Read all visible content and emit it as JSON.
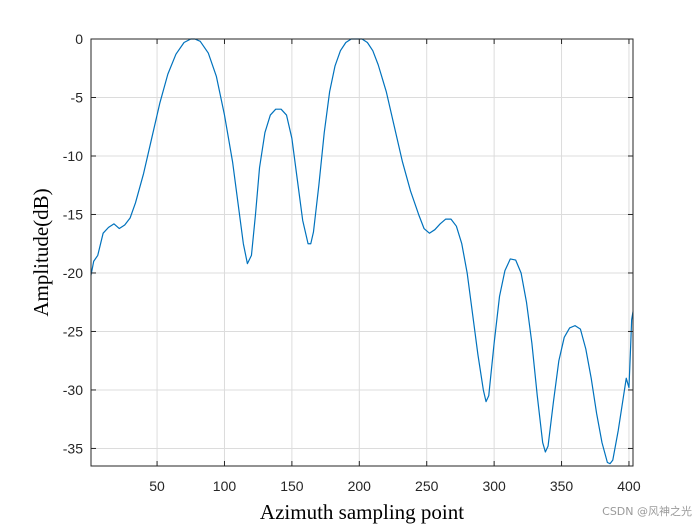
{
  "chart_data": {
    "type": "line",
    "xlabel": "Azimuth sampling point",
    "ylabel": "Amplitude(dB)",
    "xlim": [
      1,
      403
    ],
    "ylim": [
      -36.5,
      0
    ],
    "xticks": [
      50,
      100,
      150,
      200,
      250,
      300,
      350,
      400
    ],
    "yticks": [
      0,
      -5,
      -10,
      -15,
      -20,
      -25,
      -30,
      -35
    ],
    "grid": true,
    "box": true,
    "series": [
      {
        "color": "#0072BD",
        "x": [
          1,
          3,
          6,
          10,
          14,
          18,
          22,
          26,
          30,
          34,
          40,
          46,
          52,
          58,
          64,
          70,
          75,
          78,
          82,
          88,
          94,
          100,
          106,
          110,
          114,
          117,
          120,
          123,
          126,
          130,
          134,
          138,
          142,
          146,
          150,
          154,
          158,
          162,
          164,
          166,
          170,
          174,
          178,
          182,
          186,
          190,
          194,
          198,
          202,
          206,
          210,
          214,
          220,
          226,
          232,
          238,
          244,
          248,
          252,
          256,
          260,
          264,
          268,
          272,
          276,
          280,
          284,
          288,
          292,
          294,
          296,
          300,
          304,
          308,
          312,
          316,
          320,
          324,
          328,
          332,
          336,
          338,
          340,
          344,
          348,
          352,
          356,
          360,
          364,
          368,
          372,
          376,
          380,
          384,
          386,
          388,
          392,
          396,
          398,
          400,
          401,
          402,
          403
        ],
        "y": [
          -20.2,
          -19,
          -18.5,
          -16.6,
          -16.1,
          -15.8,
          -16.2,
          -15.9,
          -15.3,
          -14.0,
          -11.5,
          -8.5,
          -5.5,
          -3.0,
          -1.3,
          -0.3,
          0,
          0,
          -0.2,
          -1.2,
          -3.2,
          -6.5,
          -10.5,
          -14.0,
          -17.5,
          -19.2,
          -18.5,
          -15.0,
          -11.0,
          -8.0,
          -6.5,
          -6.0,
          -6.0,
          -6.5,
          -8.5,
          -12.0,
          -15.5,
          -17.5,
          -17.5,
          -16.5,
          -12.5,
          -8.0,
          -4.5,
          -2.3,
          -1.0,
          -0.3,
          0,
          0,
          0,
          -0.3,
          -1.0,
          -2.2,
          -4.5,
          -7.5,
          -10.5,
          -13.0,
          -15.0,
          -16.2,
          -16.6,
          -16.3,
          -15.8,
          -15.4,
          -15.4,
          -16.0,
          -17.5,
          -20.0,
          -23.5,
          -27.0,
          -30.0,
          -31.0,
          -30.5,
          -26.0,
          -22.0,
          -19.8,
          -18.8,
          -18.9,
          -20.0,
          -22.5,
          -26.0,
          -30.5,
          -34.5,
          -35.3,
          -34.8,
          -31.0,
          -27.5,
          -25.5,
          -24.7,
          -24.5,
          -24.8,
          -26.5,
          -29.0,
          -32.0,
          -34.5,
          -36.2,
          -36.3,
          -36.0,
          -33.5,
          -30.5,
          -29.0,
          -29.8,
          -27.0,
          -24.0,
          -23.3
        ]
      }
    ]
  },
  "watermark": "CSDN @风神之光"
}
